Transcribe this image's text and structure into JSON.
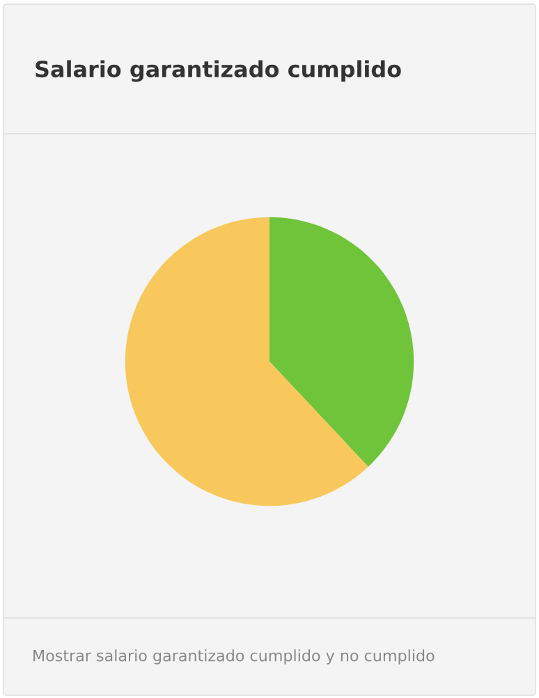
{
  "chart_data": {
    "type": "pie",
    "title": "Salario garantizado cumplido",
    "categories": [
      null,
      null
    ],
    "values": [
      38,
      62
    ],
    "colors": [
      "#70c43a",
      "#f8c85c"
    ],
    "annotations": [
      "Mostrar salario garantizado cumplido y no cumplido"
    ]
  }
}
